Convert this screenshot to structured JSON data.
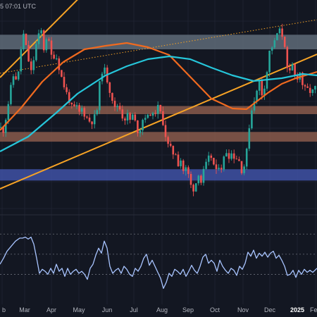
{
  "header": {
    "timestamp": "5 07:01 UTC"
  },
  "theme": {
    "background": "#131722",
    "bull": "#26a69a",
    "bear": "#ef5350",
    "ema_orange": "#f06a1f",
    "ema_cyan": "#26c6da",
    "channel": "#f7a325",
    "rsi": "#a8c4ff"
  },
  "chart_data": [
    {
      "type": "candlestick",
      "title": "",
      "x_ticks": [
        "b",
        "Mar",
        "Apr",
        "May",
        "Jun",
        "Jul",
        "Aug",
        "Sep",
        "Oct",
        "Nov",
        "Dec",
        "2025",
        "Fe"
      ],
      "x_tick_bold": [
        "2025"
      ],
      "ohlc_path": [
        [
          0,
          24
        ],
        [
          5,
          20
        ],
        [
          10,
          48
        ],
        [
          15,
          78
        ],
        [
          20,
          102
        ],
        [
          25,
          88
        ],
        [
          28,
          120
        ],
        [
          31,
          146
        ],
        [
          34,
          158
        ],
        [
          38,
          131
        ],
        [
          42,
          112
        ],
        [
          46,
          95
        ],
        [
          49,
          138
        ],
        [
          51,
          140
        ],
        [
          54,
          150
        ],
        [
          58,
          165
        ],
        [
          62,
          135
        ],
        [
          66,
          153
        ],
        [
          70,
          142
        ],
        [
          74,
          120
        ],
        [
          78,
          130
        ],
        [
          82,
          118
        ],
        [
          86,
          100
        ],
        [
          90,
          86
        ],
        [
          94,
          74
        ],
        [
          99,
          61
        ],
        [
          103,
          48
        ],
        [
          108,
          55
        ],
        [
          112,
          44
        ],
        [
          117,
          52
        ],
        [
          121,
          40
        ],
        [
          125,
          36
        ],
        [
          129,
          31
        ],
        [
          134,
          38
        ],
        [
          138,
          50
        ],
        [
          142,
          91
        ],
        [
          146,
          110
        ],
        [
          150,
          102
        ],
        [
          154,
          83
        ],
        [
          159,
          67
        ],
        [
          163,
          50
        ],
        [
          168,
          58
        ],
        [
          172,
          45
        ],
        [
          176,
          34
        ],
        [
          180,
          43
        ],
        [
          185,
          34
        ],
        [
          189,
          42
        ],
        [
          193,
          27
        ],
        [
          197,
          15
        ],
        [
          201,
          31
        ],
        [
          205,
          43
        ],
        [
          209,
          36
        ],
        [
          213,
          46
        ],
        [
          217,
          40
        ],
        [
          221,
          48
        ],
        [
          225,
          53
        ],
        [
          229,
          41
        ],
        [
          233,
          26
        ],
        [
          237,
          0
        ],
        [
          241,
          -4
        ],
        [
          245,
          -13
        ],
        [
          249,
          -10
        ],
        [
          253,
          -27
        ],
        [
          257,
          -21
        ],
        [
          261,
          -41
        ],
        [
          265,
          -32
        ],
        [
          269,
          -51
        ],
        [
          273,
          -66
        ],
        [
          278,
          -55
        ],
        [
          282,
          -39
        ],
        [
          286,
          -56
        ],
        [
          290,
          -33
        ],
        [
          294,
          -27
        ],
        [
          298,
          -15
        ],
        [
          302,
          -21
        ],
        [
          306,
          -44
        ],
        [
          310,
          -28
        ],
        [
          314,
          -33
        ],
        [
          318,
          -19
        ],
        [
          322,
          -8
        ],
        [
          326,
          -18
        ],
        [
          330,
          -10
        ],
        [
          334,
          -22
        ],
        [
          338,
          -16
        ],
        [
          342,
          -37
        ],
        [
          346,
          -33
        ],
        [
          350,
          -13
        ],
        [
          352,
          14
        ],
        [
          356,
          42
        ],
        [
          360,
          63
        ],
        [
          364,
          71
        ],
        [
          368,
          91
        ],
        [
          372,
          71
        ],
        [
          376,
          86
        ],
        [
          380,
          110
        ],
        [
          384,
          143
        ],
        [
          388,
          136
        ],
        [
          392,
          155
        ],
        [
          396,
          162
        ],
        [
          400,
          157
        ],
        [
          404,
          145
        ],
        [
          406,
          115
        ],
        [
          410,
          92
        ],
        [
          414,
          117
        ],
        [
          418,
          97
        ],
        [
          422,
          96
        ],
        [
          426,
          102
        ],
        [
          430,
          83
        ],
        [
          434,
          76
        ],
        [
          438,
          78
        ],
        [
          442,
          73
        ],
        [
          446,
          77
        ],
        [
          450,
          85
        ]
      ],
      "overlays": [
        {
          "name": "",
          "color": "#f06a1f",
          "points": [
            [
              0,
              20
            ],
            [
              30,
              52
            ],
            [
              60,
              89
            ],
            [
              90,
              117
            ],
            [
              120,
              135
            ],
            [
              150,
              140
            ],
            [
              180,
              144
            ],
            [
              210,
              138
            ],
            [
              240,
              127
            ],
            [
              270,
              96
            ],
            [
              300,
              65
            ],
            [
              330,
              51
            ],
            [
              350,
              50
            ],
            [
              380,
              73
            ],
            [
              400,
              86
            ],
            [
              420,
              94
            ],
            [
              450,
              103
            ]
          ]
        },
        {
          "name": "",
          "color": "#26c6da",
          "points": [
            [
              0,
              -10
            ],
            [
              40,
              11
            ],
            [
              80,
              45
            ],
            [
              110,
              72
            ],
            [
              150,
              98
            ],
            [
              180,
              111
            ],
            [
              210,
              121
            ],
            [
              240,
              125
            ],
            [
              270,
              121
            ],
            [
              300,
              109
            ],
            [
              330,
              98
            ],
            [
              360,
              90
            ],
            [
              400,
              94
            ],
            [
              430,
              100
            ],
            [
              450,
              98
            ]
          ]
        }
      ],
      "channel": {
        "upper": [
          [
            0,
            92
          ],
          [
            215,
            108
          ]
        ],
        "lower": [
          [
            0,
            -63
          ],
          [
            450,
            128
          ]
        ],
        "mid": [
          [
            0,
            108
          ],
          [
            450,
            216
          ]
        ]
      },
      "zones": [
        {
          "name": "resistance",
          "color": "#5f6b78",
          "range": [
            1.0,
            1.09
          ]
        },
        {
          "name": "support-1",
          "color": "#8a5a4b",
          "range": [
            0.6,
            0.65
          ]
        },
        {
          "name": "support-2",
          "color": "#8a5a4b",
          "range": [
            0.43,
            0.49
          ]
        },
        {
          "name": "support-3",
          "color": "#3f51a5",
          "range": [
            0.19,
            0.26
          ]
        }
      ],
      "grid": true,
      "legend": "none"
    },
    {
      "type": "line",
      "title": "",
      "series": [
        {
          "name": "",
          "color": "#a8c4ff"
        }
      ],
      "points": [
        [
          0,
          40
        ],
        [
          5,
          46
        ],
        [
          10,
          53
        ],
        [
          16,
          58
        ],
        [
          22,
          63
        ],
        [
          28,
          66
        ],
        [
          32,
          66
        ],
        [
          36,
          67
        ],
        [
          40,
          65
        ],
        [
          44,
          67
        ],
        [
          48,
          60
        ],
        [
          52,
          46
        ],
        [
          56,
          31
        ],
        [
          60,
          35
        ],
        [
          64,
          33
        ],
        [
          68,
          30
        ],
        [
          72,
          36
        ],
        [
          76,
          31
        ],
        [
          80,
          40
        ],
        [
          84,
          33
        ],
        [
          88,
          36
        ],
        [
          92,
          28
        ],
        [
          96,
          36
        ],
        [
          100,
          30
        ],
        [
          104,
          33
        ],
        [
          108,
          35
        ],
        [
          112,
          31
        ],
        [
          116,
          33
        ],
        [
          120,
          30
        ],
        [
          124,
          25
        ],
        [
          128,
          36
        ],
        [
          132,
          40
        ],
        [
          136,
          49
        ],
        [
          140,
          56
        ],
        [
          144,
          51
        ],
        [
          148,
          63
        ],
        [
          152,
          56
        ],
        [
          156,
          38
        ],
        [
          160,
          31
        ],
        [
          164,
          34
        ],
        [
          168,
          36
        ],
        [
          172,
          31
        ],
        [
          176,
          38
        ],
        [
          180,
          35
        ],
        [
          184,
          30
        ],
        [
          188,
          28
        ],
        [
          192,
          36
        ],
        [
          196,
          33
        ],
        [
          200,
          38
        ],
        [
          204,
          46
        ],
        [
          208,
          50
        ],
        [
          212,
          39
        ],
        [
          216,
          44
        ],
        [
          220,
          38
        ],
        [
          224,
          32
        ],
        [
          228,
          26
        ],
        [
          232,
          16
        ],
        [
          236,
          22
        ],
        [
          240,
          31
        ],
        [
          244,
          28
        ],
        [
          248,
          35
        ],
        [
          252,
          33
        ],
        [
          256,
          30
        ],
        [
          260,
          35
        ],
        [
          264,
          28
        ],
        [
          268,
          33
        ],
        [
          272,
          39
        ],
        [
          276,
          34
        ],
        [
          280,
          31
        ],
        [
          284,
          38
        ],
        [
          288,
          47
        ],
        [
          292,
          50
        ],
        [
          296,
          41
        ],
        [
          300,
          44
        ],
        [
          304,
          41
        ],
        [
          308,
          33
        ],
        [
          312,
          44
        ],
        [
          316,
          38
        ],
        [
          320,
          34
        ],
        [
          324,
          31
        ],
        [
          328,
          36
        ],
        [
          332,
          34
        ],
        [
          336,
          29
        ],
        [
          340,
          38
        ],
        [
          344,
          35
        ],
        [
          348,
          41
        ],
        [
          352,
          52
        ],
        [
          356,
          48
        ],
        [
          360,
          54
        ],
        [
          364,
          46
        ],
        [
          368,
          51
        ],
        [
          372,
          48
        ],
        [
          376,
          52
        ],
        [
          380,
          47
        ],
        [
          384,
          51
        ],
        [
          388,
          53
        ],
        [
          392,
          46
        ],
        [
          396,
          49
        ],
        [
          400,
          44
        ],
        [
          404,
          38
        ],
        [
          408,
          29
        ],
        [
          412,
          30
        ],
        [
          416,
          34
        ],
        [
          420,
          27
        ],
        [
          424,
          34
        ],
        [
          428,
          30
        ],
        [
          432,
          35
        ],
        [
          436,
          32
        ],
        [
          440,
          34
        ],
        [
          444,
          32
        ],
        [
          450,
          36
        ]
      ],
      "reference_lines": [
        70,
        50,
        30
      ],
      "grid": true,
      "legend": "none"
    }
  ]
}
